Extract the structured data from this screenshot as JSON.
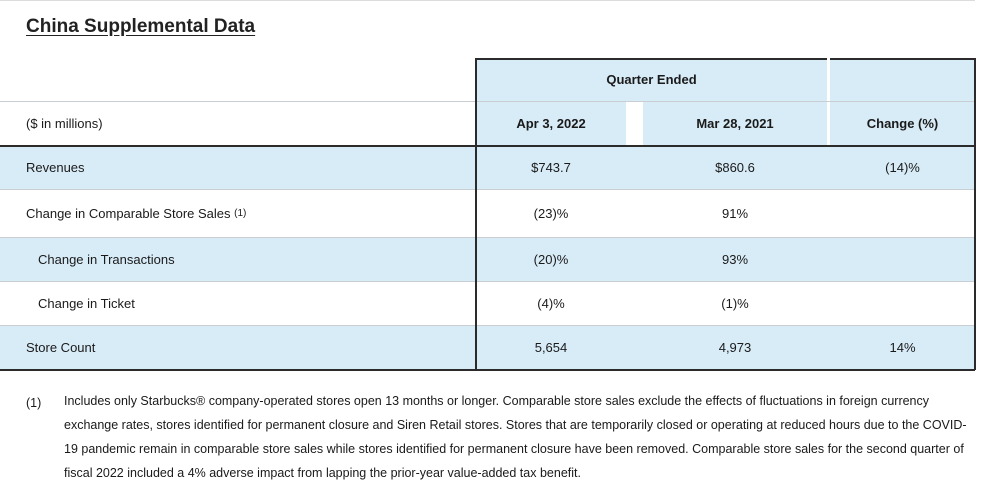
{
  "title": "China Supplemental Data",
  "table": {
    "group_header": "Quarter Ended",
    "row_label_header": "($ in millions)",
    "columns": [
      "Apr 3, 2022",
      "Mar 28, 2021",
      "Change (%)"
    ],
    "rows": [
      {
        "label": "Revenues",
        "footnote": "",
        "values": [
          "$743.7",
          "$860.6",
          "(14)%"
        ]
      },
      {
        "label": "Change in Comparable Store Sales",
        "footnote": "(1)",
        "values": [
          "(23)%",
          "91%",
          ""
        ]
      },
      {
        "label": "Change in Transactions",
        "footnote": "",
        "values": [
          "(20)%",
          "93%",
          ""
        ]
      },
      {
        "label": "Change in Ticket",
        "footnote": "",
        "values": [
          "(4)%",
          "(1)%",
          ""
        ]
      },
      {
        "label": "Store Count",
        "footnote": "",
        "values": [
          "5,654",
          "4,973",
          "14%"
        ]
      }
    ]
  },
  "footnote": {
    "marker": "(1)",
    "text": "Includes only Starbucks® company-operated stores open 13 months or longer. Comparable store sales exclude the effects of fluctuations in foreign currency exchange rates, stores identified for permanent closure and Siren Retail stores. Stores that are temporarily closed or operating at reduced hours due to the COVID-19 pandemic remain in comparable store sales while stores identified for permanent closure have been removed. Comparable store sales for the second quarter of fiscal 2022 included a 4% adverse impact from lapping the prior-year value-added tax benefit."
  },
  "colors": {
    "row_highlight": "#d8ecf8",
    "rule": "#2b2b2b"
  }
}
